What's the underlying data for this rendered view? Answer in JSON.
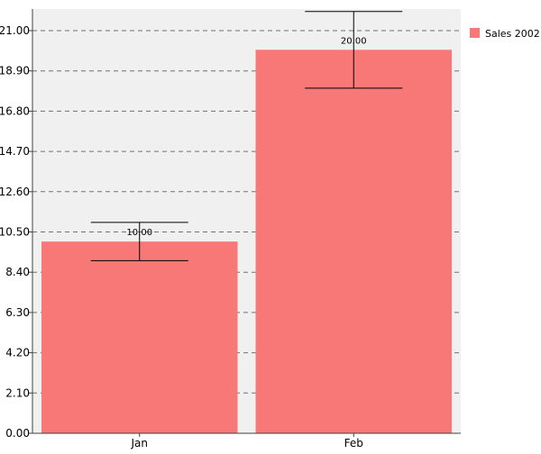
{
  "chart_data": {
    "type": "bar",
    "categories": [
      "Jan",
      "Feb"
    ],
    "series": [
      {
        "name": "Sales 2002",
        "values": [
          10,
          20
        ],
        "error_low": [
          9,
          18
        ],
        "error_high": [
          11,
          22
        ],
        "data_labels": [
          "10.00",
          "20.00"
        ]
      }
    ],
    "title": "",
    "xlabel": "",
    "ylabel": "",
    "ylim": [
      0,
      21.0
    ],
    "yticks": [
      0,
      2.1,
      4.2,
      6.3,
      8.4,
      10.5,
      12.6,
      14.7,
      16.8,
      18.9,
      21.0
    ],
    "ytick_labels": [
      "0.00",
      "2.10",
      "4.20",
      "6.30",
      "8.40",
      "10.50",
      "12.60",
      "14.70",
      "16.80",
      "18.90",
      "21.00"
    ],
    "grid": true,
    "legend_position": "top-right",
    "colors": {
      "bar": "#f87878",
      "plot_background": "#f0f0f0",
      "grid": "#707070",
      "axis": "#404040",
      "error_bar": "#000000"
    }
  }
}
